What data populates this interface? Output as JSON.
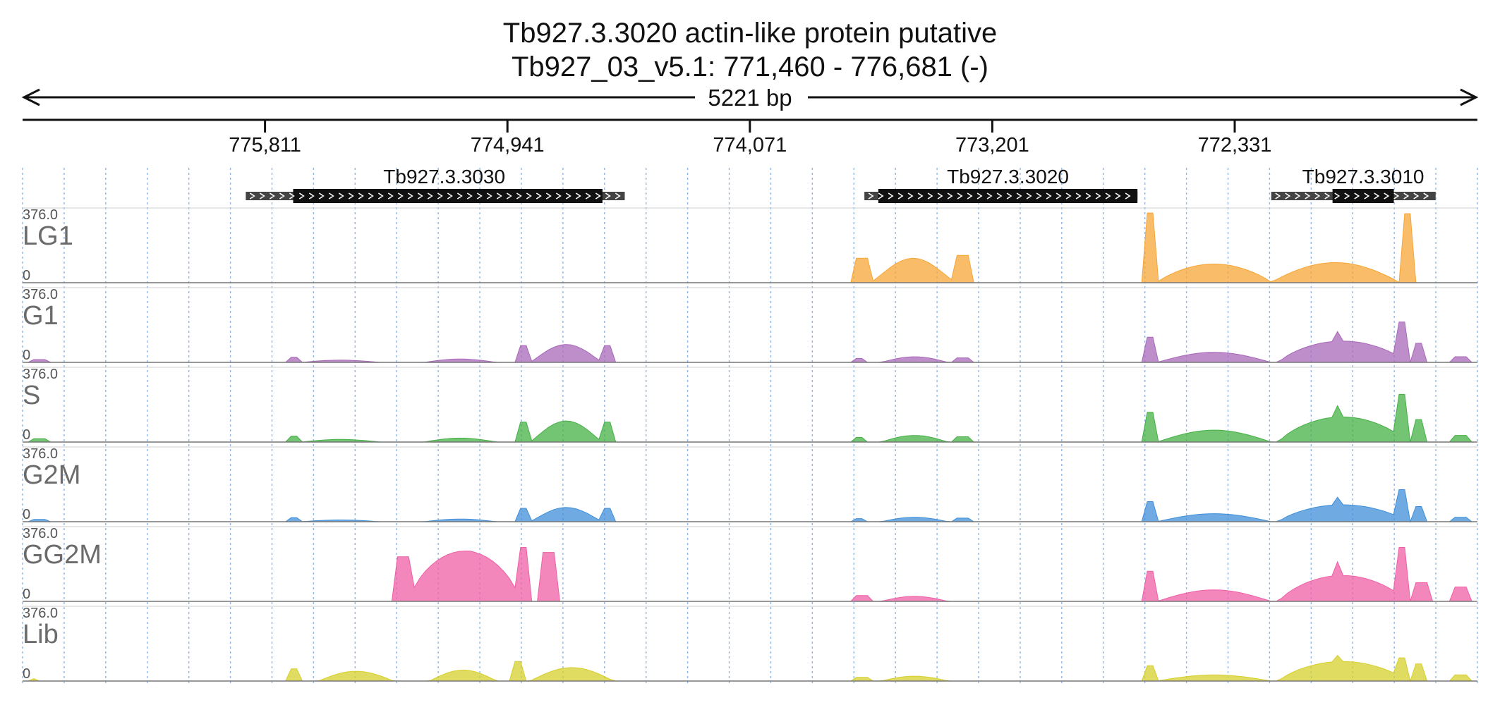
{
  "title_line1": "Tb927.3.3020  actin-like protein  putative",
  "title_line2": "Tb927_03_v5.1: 771,460 - 776,681 (-)",
  "chart_data": {
    "type": "area",
    "title": "Tb927.3.3020  actin-like protein  putative",
    "subtitle": "Tb927_03_v5.1: 771,460 - 776,681 (-)",
    "span_label": "5221 bp",
    "x_range": [
      776681,
      771460
    ],
    "x_reversed": true,
    "x_ticks": [
      775811,
      774941,
      774071,
      773201,
      772331
    ],
    "x_tick_labels": [
      "775,811",
      "774,941",
      "774,071",
      "773,201",
      "772,331"
    ],
    "ylim": [
      0,
      376.0
    ],
    "y_max_label": "376.0",
    "y_zero_label": "0",
    "grid": "vertical dotted",
    "genes": [
      {
        "name": "Tb927.3.3030",
        "start": 775880,
        "end": 774520,
        "cds_start": 775710,
        "cds_end": 774600
      },
      {
        "name": "Tb927.3.3020",
        "start": 773660,
        "end": 772680,
        "cds_start": 773610,
        "cds_end": 772680
      },
      {
        "name": "Tb927.3.3010",
        "start": 772200,
        "end": 771610,
        "cds_start": 771980,
        "cds_end": 771760
      }
    ],
    "series": [
      {
        "name": "LG1",
        "color": "#f7a535",
        "profile": "lg1",
        "scale": 1.0
      },
      {
        "name": "G1",
        "color": "#a868b8",
        "profile": "multi",
        "scale": 0.78
      },
      {
        "name": "S",
        "color": "#44b044",
        "profile": "multi",
        "scale": 0.92
      },
      {
        "name": "G2M",
        "color": "#3f8fd8",
        "profile": "multi",
        "scale": 0.62
      },
      {
        "name": "GG2M",
        "color": "#ef5fa5",
        "profile": "gg2m",
        "scale": 1.0
      },
      {
        "name": "Lib",
        "color": "#d6cf2c",
        "profile": "lib",
        "scale": 0.85
      }
    ]
  }
}
